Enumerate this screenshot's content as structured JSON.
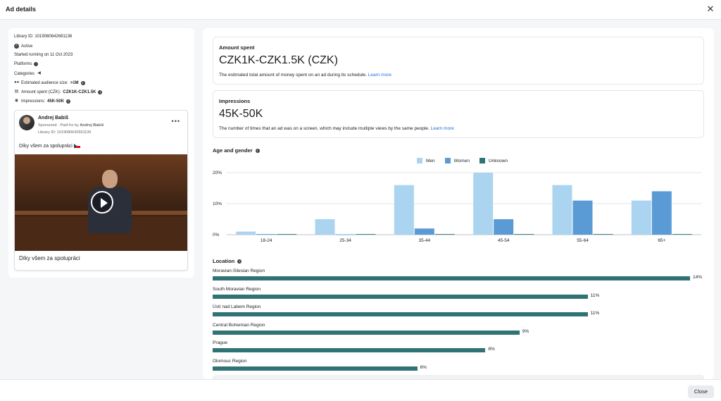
{
  "header": {
    "title": "Ad details",
    "close_icon": "close-icon"
  },
  "left": {
    "library_id": "Library ID: 1019080642691136",
    "status": "Active",
    "started": "Started running on 11 Oct 2023",
    "platforms_label": "Platforms",
    "categories_label": "Categories",
    "audience_label": "Estimated audience size:",
    "audience_value": ">1M",
    "spent_label": "Amount spent (CZK):",
    "spent_value": "CZK1K-CZK1.5K",
    "impressions_label": "Impressions:",
    "impressions_value": "45K-50K",
    "ad": {
      "advertiser": "Andrej Babiš",
      "sponsored": "Sponsored",
      "paid_for_label": "Paid for by",
      "paid_for_name": "Andrej Babiš",
      "library_id": "Library ID: 1019080642691136",
      "text": "Díky všem za spolupráci",
      "caption": "Díky všem za spolupráci"
    }
  },
  "amount": {
    "label": "Amount spent",
    "value": "CZK1K-CZK1.5K (CZK)",
    "desc": "The estimated total amount of money spent on an ad during its schedule.",
    "link": "Learn more"
  },
  "impressions": {
    "label": "Impressions",
    "value": "45K-50K",
    "desc": "The number of times that an ad was on a screen, which may include multiple views by the same people.",
    "link": "Learn more"
  },
  "age_gender": {
    "title": "Age and gender"
  },
  "chart_data": {
    "type": "bar",
    "categories": [
      "18-24",
      "25-34",
      "35-44",
      "45-54",
      "55-64",
      "65+"
    ],
    "series": [
      {
        "name": "Men",
        "color": "#aad4f0",
        "values": [
          1,
          5,
          16,
          20,
          16,
          11
        ]
      },
      {
        "name": "Women",
        "color": "#5b9bd5",
        "values": [
          0.2,
          0.1,
          2,
          5,
          11,
          14
        ]
      },
      {
        "name": "Unknown",
        "color": "#2f7374",
        "values": [
          0.2,
          0.2,
          0.2,
          0.2,
          0.2,
          0.2
        ]
      }
    ],
    "yticks": [
      "20%",
      "10%",
      "0%"
    ],
    "ylim": [
      0,
      20
    ],
    "grid": true,
    "legend": "top-center"
  },
  "location": {
    "title": "Location",
    "max": 14,
    "items": [
      {
        "name": "Moravian-Silesian Region",
        "value": 14,
        "pct": "14%"
      },
      {
        "name": "South Moravian Region",
        "value": 11,
        "pct": "11%"
      },
      {
        "name": "Ústí nad Labem Region",
        "value": 11,
        "pct": "11%"
      },
      {
        "name": "Central Bohemian Region",
        "value": 9,
        "pct": "9%"
      },
      {
        "name": "Prague",
        "value": 8,
        "pct": "8%"
      },
      {
        "name": "Olomouc Region",
        "value": 6,
        "pct": "6%"
      }
    ]
  },
  "footer": {
    "close_label": "Close"
  }
}
